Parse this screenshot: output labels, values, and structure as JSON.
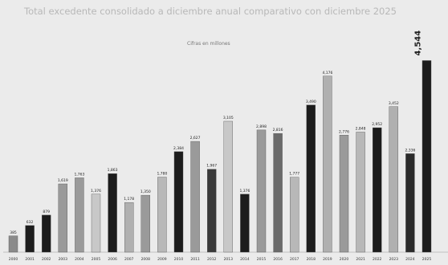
{
  "chart_data": {
    "type": "bar",
    "title": "Total excedente consolidado a diciembre anual comparativo con diciembre 2025",
    "subtitle": "Cifras en millones",
    "categories": [
      "2000",
      "2001",
      "2002",
      "2003",
      "2004",
      "2005",
      "2006",
      "2007",
      "2008",
      "2009",
      "2010",
      "2011",
      "2012",
      "2013",
      "2014",
      "2015",
      "2016",
      "2017",
      "2018",
      "2019",
      "2020",
      "2021",
      "2022",
      "2023",
      "2024",
      "2025"
    ],
    "values": [
      385,
      632,
      879,
      1619,
      1763,
      1376,
      1863,
      1178,
      1350,
      1780,
      2384,
      2627,
      1967,
      3105,
      1376,
      2898,
      2816,
      1777,
      3490,
      4176,
      2776,
      2848,
      2952,
      3452,
      2336,
      4544
    ],
    "value_labels": [
      "385",
      "632",
      "879",
      "1,619",
      "1,763",
      "1,376",
      "1,863",
      "1,178",
      "1,350",
      "1,780",
      "2,384",
      "2,627",
      "1,967",
      "3,105",
      "1,376",
      "2,898",
      "2,816",
      "1,777",
      "3,490",
      "4,176",
      "2,776",
      "2,848",
      "2,952",
      "3,452",
      "2,336",
      "4,544"
    ],
    "bar_colors": [
      "#8a8a8a",
      "#1c1c1c",
      "#1c1c1c",
      "#9a9a9a",
      "#9a9a9a",
      "#c8c8c8",
      "#1c1c1c",
      "#b0b0b0",
      "#9a9a9a",
      "#b8b8b8",
      "#1c1c1c",
      "#9a9a9a",
      "#3a3a3a",
      "#c8c8c8",
      "#1c1c1c",
      "#9a9a9a",
      "#6a6a6a",
      "#b8b8b8",
      "#1c1c1c",
      "#b0b0b0",
      "#9a9a9a",
      "#b8b8b8",
      "#1c1c1c",
      "#b0b0b0",
      "#2a2a2a",
      "#1c1c1c"
    ],
    "xlabel": "",
    "ylabel": "",
    "ylim": [
      0,
      4800
    ],
    "grid": false,
    "legend": "none"
  }
}
